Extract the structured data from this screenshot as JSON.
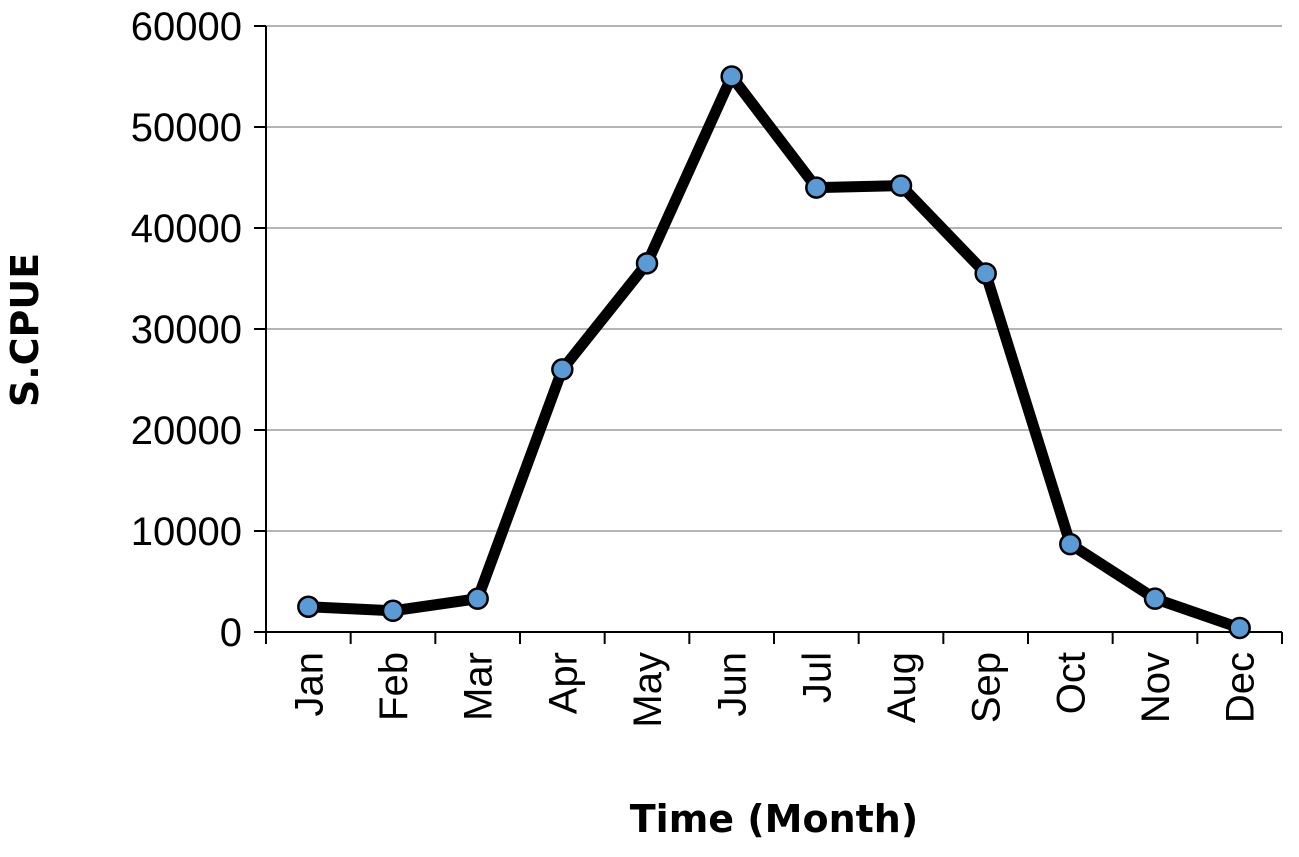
{
  "chart_data": {
    "type": "line",
    "xlabel": "Time (Month)",
    "ylabel": "S.CPUE",
    "ylim": [
      0,
      60000
    ],
    "yticks": [
      0,
      10000,
      20000,
      30000,
      40000,
      50000,
      60000
    ],
    "grid": true,
    "categories": [
      "Jan",
      "Feb",
      "Mar",
      "Apr",
      "May",
      "Jun",
      "Jul",
      "Aug",
      "Sep",
      "Oct",
      "Nov",
      "Dec"
    ],
    "series": [
      {
        "values": [
          2500,
          2100,
          3300,
          26000,
          36500,
          55000,
          44000,
          44200,
          35500,
          8700,
          3300,
          400
        ],
        "line_color": "#000000",
        "marker_color": "#5B9BD5"
      }
    ]
  }
}
